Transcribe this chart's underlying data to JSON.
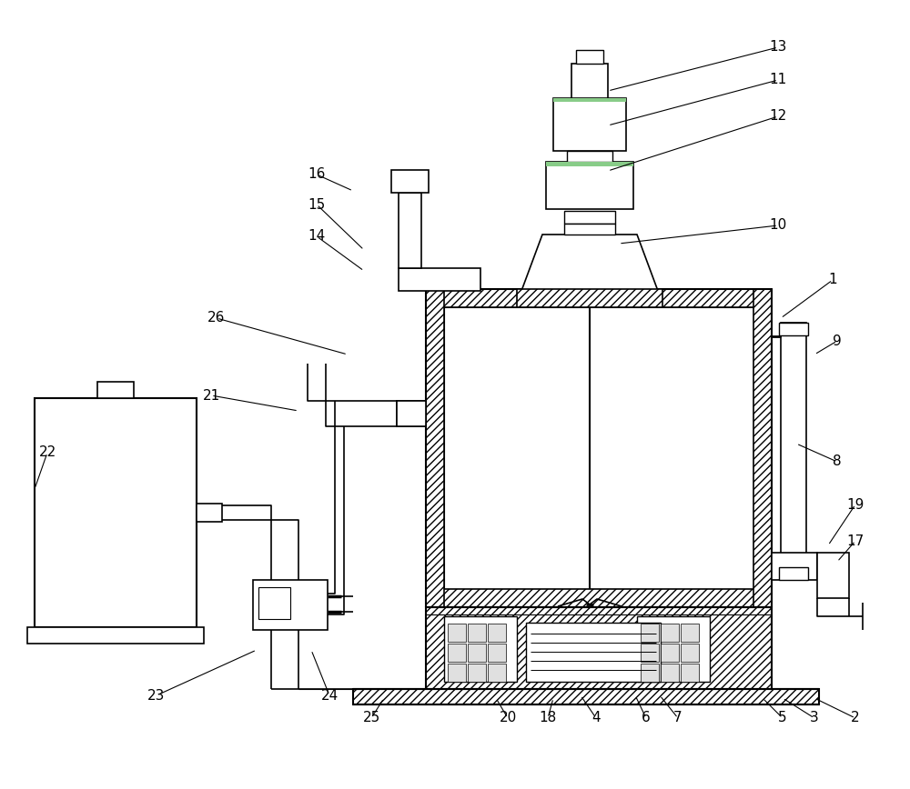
{
  "bg_color": "#ffffff",
  "line_color": "#000000",
  "label_color": "#000000",
  "figsize": [
    10.0,
    8.68
  ],
  "dpi": 100,
  "label_data": [
    [
      "1",
      915,
      308,
      858,
      350
    ],
    [
      "2",
      940,
      790,
      895,
      768
    ],
    [
      "3",
      895,
      790,
      860,
      768
    ],
    [
      "4",
      655,
      790,
      638,
      765
    ],
    [
      "5",
      860,
      790,
      838,
      768
    ],
    [
      "6",
      710,
      790,
      698,
      765
    ],
    [
      "7",
      745,
      790,
      725,
      765
    ],
    [
      "8",
      920,
      508,
      875,
      488
    ],
    [
      "9",
      920,
      375,
      895,
      390
    ],
    [
      "10",
      855,
      248,
      680,
      268
    ],
    [
      "11",
      855,
      88,
      668,
      138
    ],
    [
      "12",
      855,
      128,
      668,
      188
    ],
    [
      "13",
      855,
      52,
      668,
      100
    ],
    [
      "14",
      348,
      260,
      400,
      298
    ],
    [
      "15",
      348,
      225,
      400,
      275
    ],
    [
      "16",
      348,
      192,
      388,
      210
    ],
    [
      "17",
      940,
      595,
      920,
      618
    ],
    [
      "18",
      602,
      790,
      608,
      768
    ],
    [
      "19",
      940,
      555,
      910,
      600
    ],
    [
      "20",
      558,
      790,
      545,
      768
    ],
    [
      "21",
      232,
      435,
      328,
      452
    ],
    [
      "22",
      52,
      498,
      38,
      538
    ],
    [
      "23",
      172,
      765,
      282,
      715
    ],
    [
      "24",
      362,
      765,
      342,
      715
    ],
    [
      "25",
      408,
      790,
      422,
      768
    ],
    [
      "26",
      238,
      350,
      382,
      390
    ]
  ]
}
